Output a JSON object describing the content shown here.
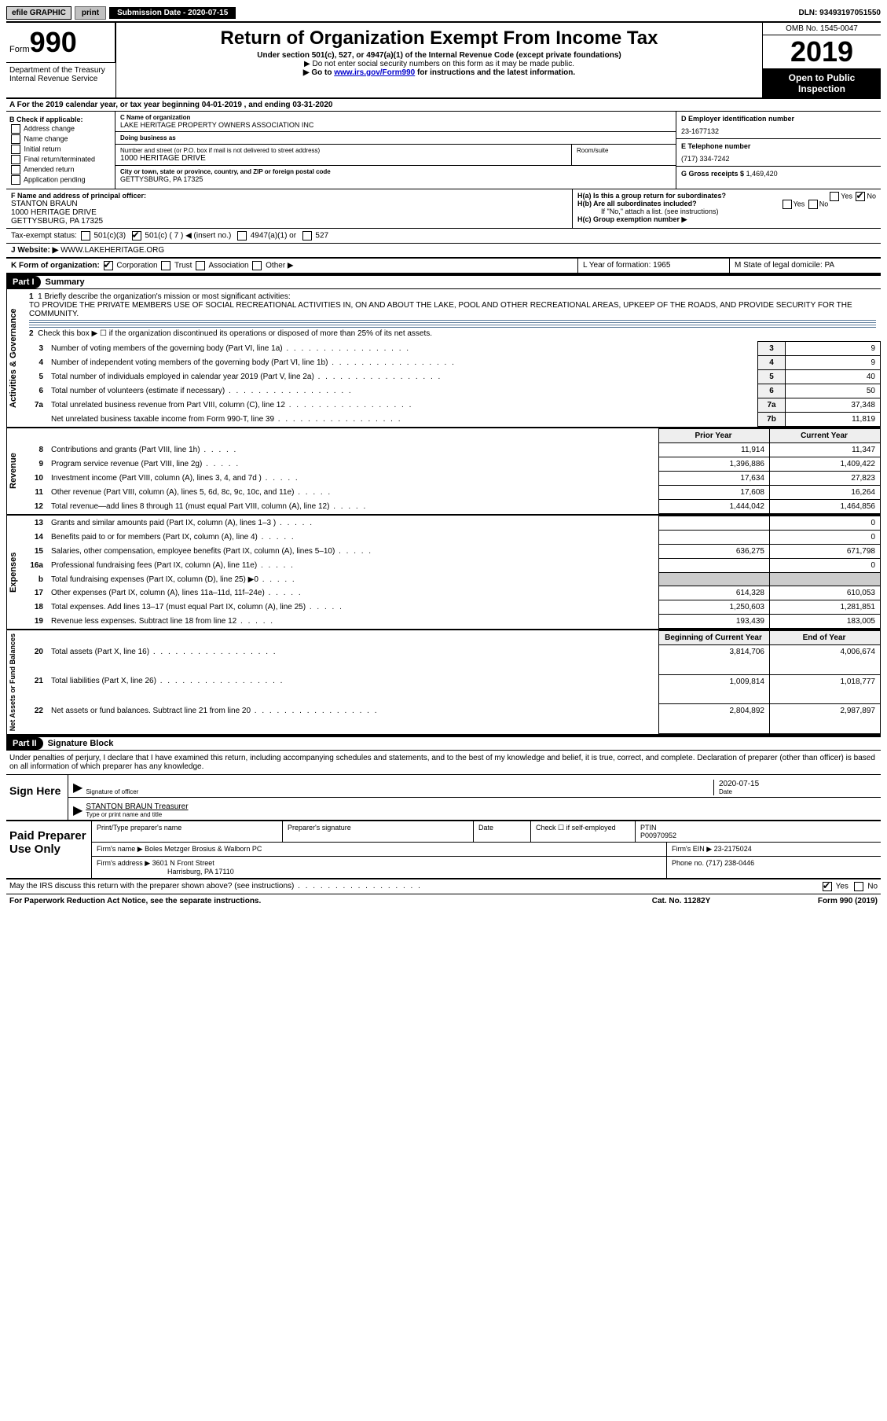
{
  "colors": {
    "black": "#000000",
    "white": "#ffffff",
    "gray_btn": "#c0c0c0",
    "gray_lbl": "#d0d0d0",
    "shaded": "#cccccc",
    "link": "#0000cc",
    "rule": "#5a7a9a"
  },
  "topbar": {
    "efile": "efile GRAPHIC",
    "print": "print",
    "subdate_label": "Submission Date - 2020-07-15",
    "dln": "DLN: 93493197051550"
  },
  "header": {
    "form_word": "Form",
    "form_num": "990",
    "dept": "Department of the Treasury\nInternal Revenue Service",
    "title": "Return of Organization Exempt From Income Tax",
    "sub1": "Under section 501(c), 527, or 4947(a)(1) of the Internal Revenue Code (except private foundations)",
    "sub2": "▶ Do not enter social security numbers on this form as it may be made public.",
    "sub3_pre": "▶ Go to ",
    "sub3_link": "www.irs.gov/Form990",
    "sub3_post": " for instructions and the latest information.",
    "omb": "OMB No. 1545-0047",
    "year": "2019",
    "inspection": "Open to Public Inspection"
  },
  "rowA": "A For the 2019 calendar year, or tax year beginning 04-01-2019   , and ending 03-31-2020",
  "checkB": {
    "header": "B Check if applicable:",
    "items": [
      "Address change",
      "Name change",
      "Initial return",
      "Final return/terminated",
      "Amended return",
      "Application pending"
    ]
  },
  "org": {
    "name_label": "C Name of organization",
    "name": "LAKE HERITAGE PROPERTY OWNERS ASSOCIATION INC",
    "dba_label": "Doing business as",
    "dba": "",
    "addr_label": "Number and street (or P.O. box if mail is not delivered to street address)",
    "room_label": "Room/suite",
    "addr": "1000 HERITAGE DRIVE",
    "city_label": "City or town, state or province, country, and ZIP or foreign postal code",
    "city": "GETTYSBURG, PA  17325"
  },
  "ein": {
    "label": "D Employer identification number",
    "value": "23-1677132"
  },
  "phone": {
    "label": "E Telephone number",
    "value": "(717) 334-7242"
  },
  "gross": {
    "label": "G Gross receipts $",
    "value": "1,469,420"
  },
  "officer": {
    "label": "F  Name and address of principal officer:",
    "name": "STANTON BRAUN",
    "addr1": "1000 HERITAGE DRIVE",
    "addr2": "GETTYSBURG, PA  17325"
  },
  "h": {
    "a": "H(a)  Is this a group return for subordinates?",
    "b": "H(b)  Are all subordinates included?",
    "b_note": "If \"No,\" attach a list. (see instructions)",
    "c": "H(c)  Group exemption number ▶"
  },
  "tax_status": {
    "label": "Tax-exempt status:",
    "c3": "501(c)(3)",
    "c": "501(c) ( 7 ) ◀ (insert no.)",
    "a1": "4947(a)(1) or",
    "s527": "527"
  },
  "website": {
    "label": "J   Website: ▶",
    "value": "WWW.LAKEHERITAGE.ORG"
  },
  "rowK": {
    "label": "K Form of organization:",
    "opts": [
      "Corporation",
      "Trust",
      "Association",
      "Other ▶"
    ],
    "checked": 0,
    "L": "L Year of formation: 1965",
    "M": "M State of legal domicile: PA"
  },
  "part1": {
    "header": "Part I",
    "title": "Summary",
    "q1": "1  Briefly describe the organization's mission or most significant activities:",
    "mission": "TO PROVIDE THE PRIVATE MEMBERS USE OF SOCIAL RECREATIONAL ACTIVITIES IN, ON AND ABOUT THE LAKE, POOL AND OTHER RECREATIONAL AREAS, UPKEEP OF THE ROADS, AND PROVIDE SECURITY FOR THE COMMUNITY.",
    "q2": "Check this box ▶ ☐  if the organization discontinued its operations or disposed of more than 25% of its net assets.",
    "sideA": "Activities & Governance",
    "sideR": "Revenue",
    "sideE": "Expenses",
    "sideN": "Net Assets or Fund Balances",
    "lines_gov": [
      {
        "n": "3",
        "desc": "Number of voting members of the governing body (Part VI, line 1a)",
        "box": "3",
        "val": "9"
      },
      {
        "n": "4",
        "desc": "Number of independent voting members of the governing body (Part VI, line 1b)",
        "box": "4",
        "val": "9"
      },
      {
        "n": "5",
        "desc": "Total number of individuals employed in calendar year 2019 (Part V, line 2a)",
        "box": "5",
        "val": "40"
      },
      {
        "n": "6",
        "desc": "Total number of volunteers (estimate if necessary)",
        "box": "6",
        "val": "50"
      },
      {
        "n": "7a",
        "desc": "Total unrelated business revenue from Part VIII, column (C), line 12",
        "box": "7a",
        "val": "37,348"
      },
      {
        "n": "",
        "desc": "Net unrelated business taxable income from Form 990-T, line 39",
        "box": "7b",
        "val": "11,819"
      }
    ],
    "col_prior": "Prior Year",
    "col_curr": "Current Year",
    "rev": [
      {
        "n": "8",
        "desc": "Contributions and grants (Part VIII, line 1h)",
        "prior": "11,914",
        "curr": "11,347"
      },
      {
        "n": "9",
        "desc": "Program service revenue (Part VIII, line 2g)",
        "prior": "1,396,886",
        "curr": "1,409,422"
      },
      {
        "n": "10",
        "desc": "Investment income (Part VIII, column (A), lines 3, 4, and 7d )",
        "prior": "17,634",
        "curr": "27,823"
      },
      {
        "n": "11",
        "desc": "Other revenue (Part VIII, column (A), lines 5, 6d, 8c, 9c, 10c, and 11e)",
        "prior": "17,608",
        "curr": "16,264"
      },
      {
        "n": "12",
        "desc": "Total revenue—add lines 8 through 11 (must equal Part VIII, column (A), line 12)",
        "prior": "1,444,042",
        "curr": "1,464,856"
      }
    ],
    "exp": [
      {
        "n": "13",
        "desc": "Grants and similar amounts paid (Part IX, column (A), lines 1–3 )",
        "prior": "",
        "curr": "0"
      },
      {
        "n": "14",
        "desc": "Benefits paid to or for members (Part IX, column (A), line 4)",
        "prior": "",
        "curr": "0"
      },
      {
        "n": "15",
        "desc": "Salaries, other compensation, employee benefits (Part IX, column (A), lines 5–10)",
        "prior": "636,275",
        "curr": "671,798"
      },
      {
        "n": "16a",
        "desc": "Professional fundraising fees (Part IX, column (A), line 11e)",
        "prior": "",
        "curr": "0"
      },
      {
        "n": "b",
        "desc": "Total fundraising expenses (Part IX, column (D), line 25) ▶0",
        "prior": "SHADE",
        "curr": "SHADE"
      },
      {
        "n": "17",
        "desc": "Other expenses (Part IX, column (A), lines 11a–11d, 11f–24e)",
        "prior": "614,328",
        "curr": "610,053"
      },
      {
        "n": "18",
        "desc": "Total expenses. Add lines 13–17 (must equal Part IX, column (A), line 25)",
        "prior": "1,250,603",
        "curr": "1,281,851"
      },
      {
        "n": "19",
        "desc": "Revenue less expenses. Subtract line 18 from line 12",
        "prior": "193,439",
        "curr": "183,005"
      }
    ],
    "col_begin": "Beginning of Current Year",
    "col_end": "End of Year",
    "net": [
      {
        "n": "20",
        "desc": "Total assets (Part X, line 16)",
        "prior": "3,814,706",
        "curr": "4,006,674"
      },
      {
        "n": "21",
        "desc": "Total liabilities (Part X, line 26)",
        "prior": "1,009,814",
        "curr": "1,018,777"
      },
      {
        "n": "22",
        "desc": "Net assets or fund balances. Subtract line 21 from line 20",
        "prior": "2,804,892",
        "curr": "2,987,897"
      }
    ]
  },
  "part2": {
    "header": "Part II",
    "title": "Signature Block",
    "intro": "Under penalties of perjury, I declare that I have examined this return, including accompanying schedules and statements, and to the best of my knowledge and belief, it is true, correct, and complete. Declaration of preparer (other than officer) is based on all information of which preparer has any knowledge.",
    "sign_here": "Sign Here",
    "sig_officer": "Signature of officer",
    "date_label": "Date",
    "date_val": "2020-07-15",
    "name_title": "STANTON BRAUN Treasurer",
    "name_caption": "Type or print name and title",
    "paid": "Paid Preparer Use Only",
    "p_name_label": "Print/Type preparer's name",
    "p_sig_label": "Preparer's signature",
    "p_date_label": "Date",
    "p_check": "Check ☐ if self-employed",
    "ptin_label": "PTIN",
    "ptin": "P00970952",
    "firm_name_label": "Firm's name    ▶",
    "firm_name": "Boles Metzger Brosius & Walborn PC",
    "firm_ein_label": "Firm's EIN ▶",
    "firm_ein": "23-2175024",
    "firm_addr_label": "Firm's address ▶",
    "firm_addr1": "3601 N Front Street",
    "firm_addr2": "Harrisburg, PA  17110",
    "firm_phone_label": "Phone no.",
    "firm_phone": "(717) 238-0446",
    "discuss": "May the IRS discuss this return with the preparer shown above? (see instructions)"
  },
  "footer": {
    "pra": "For Paperwork Reduction Act Notice, see the separate instructions.",
    "cat": "Cat. No. 11282Y",
    "form": "Form 990 (2019)"
  }
}
